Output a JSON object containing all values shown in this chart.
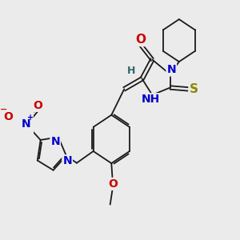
{
  "background_color": "#ebebeb",
  "bond_color": "#1a1a1a",
  "figsize": [
    3.0,
    3.0
  ],
  "dpi": 100,
  "xlim": [
    -2.5,
    5.5
  ],
  "ylim": [
    -3.5,
    4.5
  ]
}
